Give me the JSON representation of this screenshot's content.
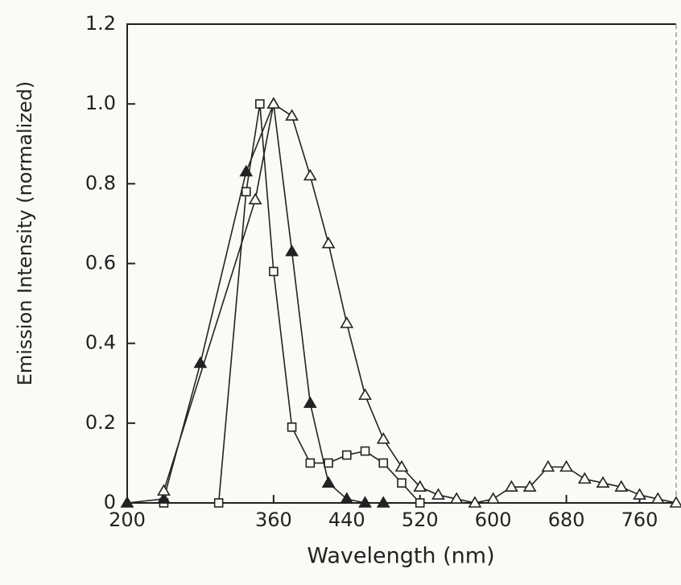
{
  "chart_data": {
    "type": "line",
    "x_label": "Wavelength (nm)",
    "y_label": "Emission Intensity (normalized)",
    "xlim": [
      200,
      800
    ],
    "xticks": [
      200,
      360,
      440,
      520,
      600,
      680,
      760
    ],
    "ylim": [
      0,
      1.2
    ],
    "yticks": [
      0,
      0.2,
      0.4,
      0.6,
      0.8,
      {
        "value": 1,
        "label": "1.0"
      },
      1.2
    ],
    "series": [
      {
        "marker": "square",
        "filled": false,
        "color": "#222222",
        "x": [
          240,
          300,
          330,
          345,
          360,
          380,
          400,
          420,
          440,
          460,
          480,
          500,
          520
        ],
        "values": [
          0,
          0,
          0.78,
          1.0,
          0.58,
          0.19,
          0.1,
          0.1,
          0.12,
          0.13,
          0.1,
          0.05,
          0
        ]
      },
      {
        "marker": "triangle",
        "filled": true,
        "color": "#222222",
        "x": [
          200,
          240,
          280,
          330,
          360,
          380,
          400,
          420,
          440,
          460,
          480
        ],
        "values": [
          0,
          0.01,
          0.35,
          0.83,
          1.0,
          0.63,
          0.25,
          0.05,
          0.01,
          0,
          0
        ]
      },
      {
        "marker": "triangle",
        "filled": false,
        "color": "#222222",
        "x": [
          240,
          340,
          360,
          380,
          400,
          420,
          440,
          460,
          480,
          500,
          520,
          540,
          560,
          580,
          600,
          620,
          640,
          660,
          680,
          700,
          720,
          740,
          760,
          780,
          800
        ],
        "values": [
          0.03,
          0.76,
          1.0,
          0.97,
          0.82,
          0.65,
          0.45,
          0.27,
          0.16,
          0.09,
          0.04,
          0.02,
          0.01,
          0,
          0.01,
          0.04,
          0.04,
          0.09,
          0.09,
          0.06,
          0.05,
          0.04,
          0.02,
          0.01,
          0
        ]
      }
    ]
  }
}
